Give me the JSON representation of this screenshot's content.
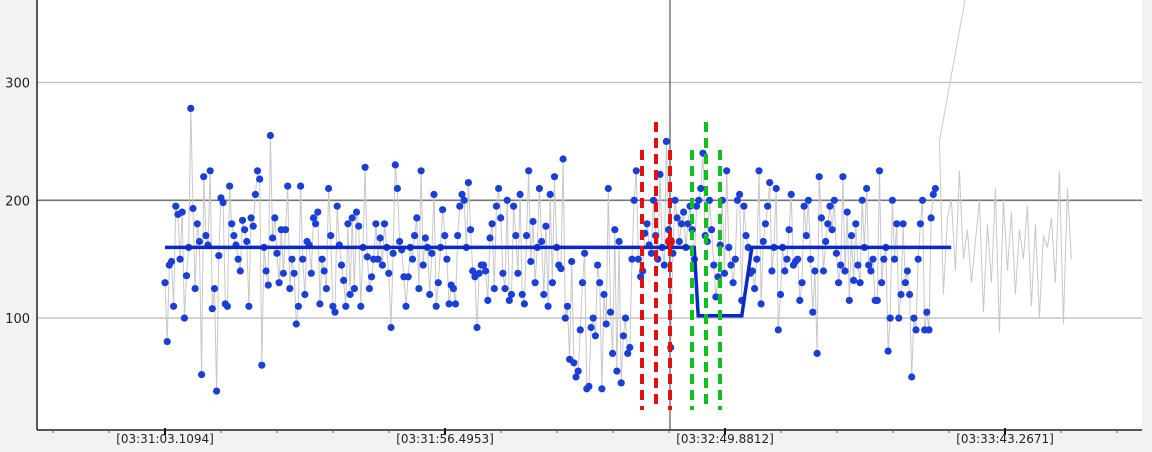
{
  "chart_data": {
    "type": "scatter",
    "title": "",
    "xlabel": "",
    "ylabel": "",
    "x_tick_labels": [
      "[03:31:03.1094]",
      "[03:31:56.4953]",
      "[03:32:49.8812]",
      "[03:33:43.2671]"
    ],
    "y_ticks": [
      100,
      200,
      300
    ],
    "ylim": [
      5,
      370
    ],
    "grid": "horizontal",
    "legend": "none",
    "colors": {
      "points": "#1a3fd6",
      "raw_line": "#c8c8c8",
      "fit_line": "#0a28c8",
      "red_markers": "#e01010",
      "green_markers": "#10c020",
      "grid": "#bdbdbd",
      "grid_major": "#777777",
      "crosshair": "#333333"
    },
    "series": [
      {
        "kind": "points",
        "values": [
          130,
          80,
          145,
          148,
          110,
          195,
          188,
          150,
          190,
          100,
          136,
          160,
          278,
          193,
          125,
          180,
          165,
          52,
          220,
          170,
          162,
          225,
          108,
          125,
          38,
          153,
          202,
          198,
          112,
          110,
          212,
          180,
          170,
          162,
          150,
          140,
          183,
          175,
          165,
          110,
          185,
          178,
          205,
          225,
          218,
          60,
          160,
          140,
          128,
          255,
          168,
          185,
          155,
          130,
          175,
          138,
          175,
          212,
          125,
          150,
          138,
          95,
          110,
          212,
          150,
          120,
          165,
          162,
          138,
          185,
          180,
          190,
          112,
          150,
          140,
          125,
          210,
          170,
          110,
          105,
          195,
          162,
          145,
          132,
          110,
          180,
          120,
          185,
          125,
          190,
          178,
          110,
          160,
          228,
          152,
          125,
          135,
          150,
          180,
          150,
          168,
          145,
          180,
          160,
          138,
          92,
          155,
          230,
          210,
          165,
          158,
          135,
          110,
          135,
          160,
          150,
          170,
          185,
          125,
          225,
          145,
          168,
          160,
          120,
          155,
          205,
          110,
          130,
          160,
          192,
          170,
          150,
          112,
          128,
          125,
          112,
          170,
          195,
          205,
          200,
          160,
          215,
          175,
          140,
          135,
          92,
          138,
          145,
          145,
          140,
          115,
          168,
          180,
          125,
          195,
          210,
          185,
          138,
          125,
          200,
          115,
          120,
          195,
          170,
          138,
          205,
          120,
          112,
          170,
          225,
          148,
          182,
          130,
          160,
          210,
          165,
          120,
          178,
          110,
          205,
          130,
          220,
          160,
          145,
          142,
          235,
          100,
          110,
          65,
          148,
          62,
          50,
          55,
          90,
          130,
          155,
          40,
          42,
          92,
          100,
          85,
          145,
          130,
          40,
          120,
          95,
          210,
          105,
          70,
          175,
          55,
          165,
          45,
          85,
          100,
          70,
          75,
          150,
          200,
          225,
          150,
          135,
          140,
          172,
          180,
          162,
          155,
          200,
          170,
          150,
          222,
          160,
          145,
          250,
          175,
          75,
          155,
          200,
          185,
          165,
          180,
          190,
          160,
          180,
          195,
          175,
          150,
          195,
          200,
          210,
          240,
          170,
          165,
          200,
          175,
          145,
          118,
          135,
          162,
          200,
          138,
          225,
          160,
          145,
          130,
          150,
          200,
          205,
          115,
          195,
          170,
          160,
          138,
          140,
          125,
          150,
          225,
          112,
          165,
          180,
          195,
          215,
          140,
          160,
          210,
          90,
          120,
          160,
          140,
          150,
          175,
          205,
          145,
          148,
          150,
          115,
          130,
          195,
          170,
          200,
          150,
          105,
          140,
          70,
          220,
          185,
          140,
          165,
          180,
          195,
          175,
          200,
          155,
          130,
          145,
          220,
          140,
          190,
          115,
          170,
          132,
          180,
          145,
          130,
          200,
          160,
          210,
          145,
          140,
          150,
          115,
          115,
          225,
          130,
          150,
          160,
          72,
          100,
          200,
          150,
          180,
          100,
          120,
          180,
          130,
          140,
          120,
          50,
          100,
          90,
          150,
          180,
          200,
          90,
          105,
          90,
          185,
          205,
          210
        ],
        "x_range": "03:31:03.1094 to 03:33:30.0"
      },
      {
        "kind": "step_fit",
        "segments": [
          {
            "from": "03:31:03.1094",
            "to": "03:32:44.0",
            "value": 160
          },
          {
            "from": "03:32:44.0",
            "to": "03:32:47.0",
            "value": 102
          },
          {
            "from": "03:32:55.0",
            "to": "03:33:33.0",
            "value": 160
          }
        ]
      }
    ],
    "annotations": {
      "red_dashed_lines": 3,
      "green_dashed_lines": 3,
      "red_point_value": 165
    }
  }
}
